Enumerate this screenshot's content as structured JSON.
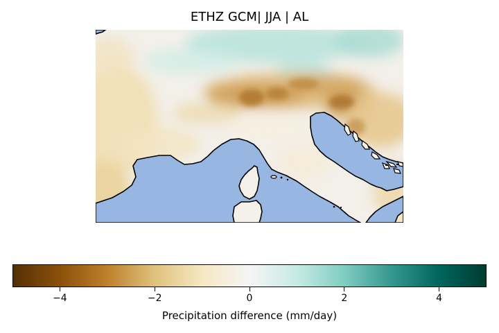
{
  "title": "ETHZ GCM| JJA | AL",
  "colorbar": {
    "label": "Precipitation difference (mm/day)",
    "min": -5,
    "max": 5,
    "ticks": [
      {
        "value": -4,
        "label": "−4"
      },
      {
        "value": -2,
        "label": "−2"
      },
      {
        "value": 0,
        "label": "0"
      },
      {
        "value": 2,
        "label": "2"
      },
      {
        "value": 4,
        "label": "4"
      }
    ],
    "colors": [
      "#543005",
      "#8c510a",
      "#bf812d",
      "#dfc27d",
      "#f6e8c3",
      "#f5f5f5",
      "#c7eae5",
      "#80cdc1",
      "#35978f",
      "#01665e",
      "#003c30"
    ]
  },
  "map": {
    "sea_color": "#97b6e1",
    "coastline_color": "#000000",
    "background_color": "#f4f1ea"
  }
}
